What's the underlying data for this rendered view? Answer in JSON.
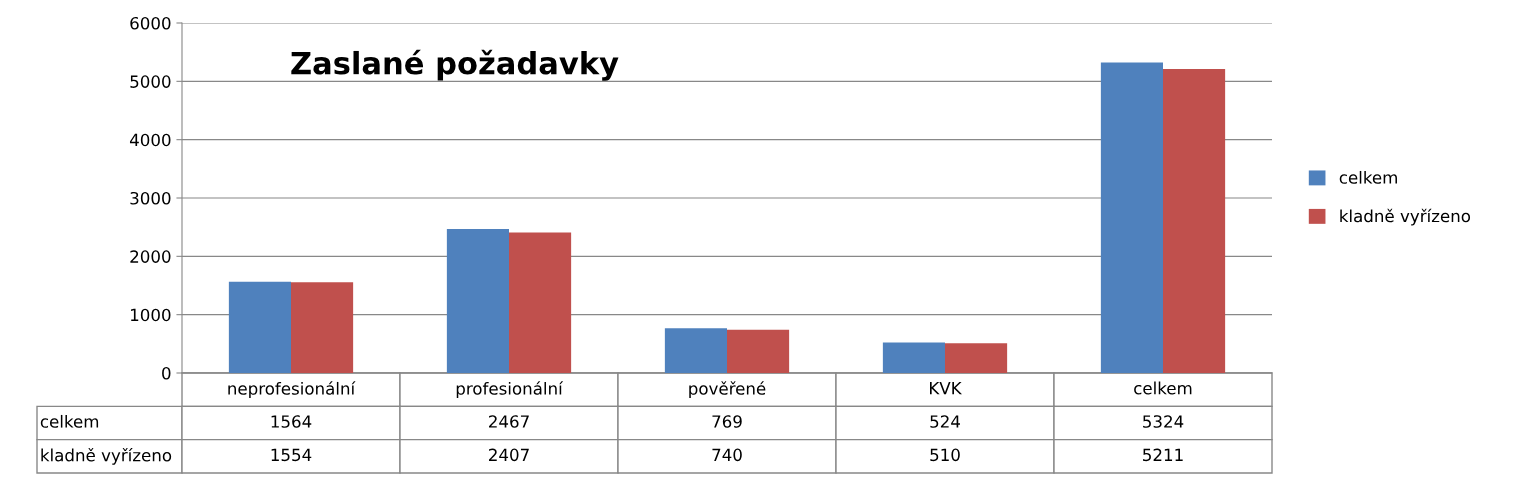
{
  "chart_data": {
    "type": "bar",
    "title": "Zaslané požadavky",
    "categories": [
      "neprofesionální",
      "profesionální",
      "pověřené",
      "KVK",
      "celkem"
    ],
    "series": [
      {
        "name": "celkem",
        "color": "#4f81bd",
        "values": [
          1564,
          2467,
          769,
          524,
          5324
        ]
      },
      {
        "name": "kladně vyřízeno",
        "color": "#c0504d",
        "values": [
          1554,
          2407,
          740,
          510,
          5211
        ]
      }
    ],
    "ylim": [
      0,
      6000
    ],
    "yticks": [
      0,
      1000,
      2000,
      3000,
      4000,
      5000,
      6000
    ],
    "grid": "y",
    "legend": "right",
    "data_labels": true
  }
}
